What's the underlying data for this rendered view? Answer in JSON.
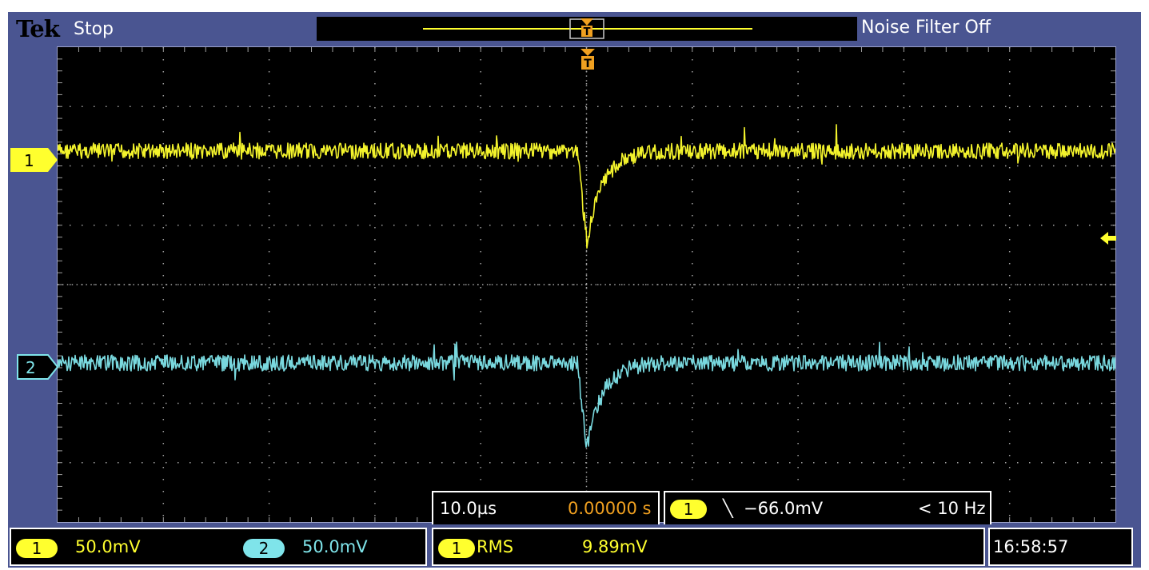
{
  "header": {
    "brand": "Tek",
    "run_state": "Stop",
    "noise_filter": "Noise Filter Off"
  },
  "channels": [
    {
      "id": "1",
      "label": "1",
      "color": "#ffff2e",
      "scale": "50.0mV"
    },
    {
      "id": "2",
      "label": "2",
      "color": "#7fe4ea",
      "scale": "50.0mV"
    }
  ],
  "timebase": {
    "time_per_div": "10.0µs",
    "position": "0.00000 s"
  },
  "trigger": {
    "source": "1",
    "slope_icon": "falling-edge-icon",
    "slope_symbol": "╲",
    "level": "−66.0mV",
    "frequency": "< 10 Hz",
    "color": "#f0a020"
  },
  "measurement": {
    "source": "1",
    "type": "RMS",
    "value": "9.89mV"
  },
  "clock": {
    "time": "16:58:57"
  },
  "colors": {
    "frame": "#4a5591",
    "grid_background": "#000000",
    "graticule": "#a0a0a0",
    "ch1": "#ffff2e",
    "ch2": "#7fe4ea",
    "trigger_marker": "#f0a020"
  }
}
